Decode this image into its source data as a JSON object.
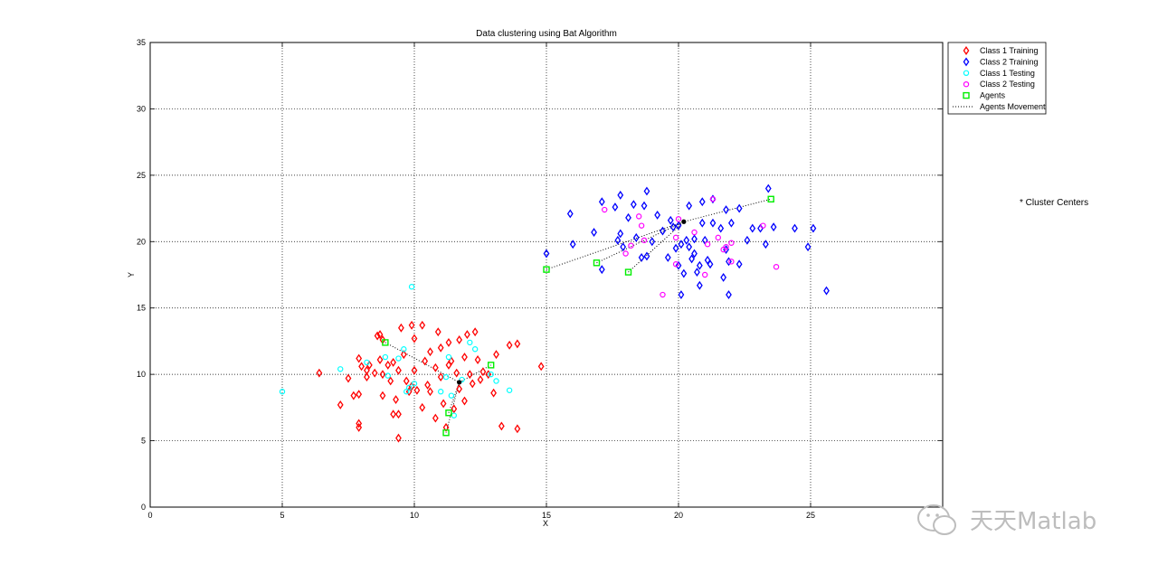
{
  "chart_data": {
    "type": "scatter",
    "title": "Data clustering using Bat Algorithm",
    "xlabel": "X",
    "ylabel": "Y",
    "xlim": [
      0,
      30
    ],
    "ylim": [
      0,
      35
    ],
    "xticks": [
      0,
      5,
      10,
      15,
      20,
      25
    ],
    "yticks": [
      0,
      5,
      10,
      15,
      20,
      25,
      30,
      35
    ],
    "grid": true,
    "legend_position": "outside-top-right",
    "series": [
      {
        "name": "Class 1 Training",
        "marker": "diamond",
        "color": "#ff0000",
        "points": [
          [
            6.4,
            10.1
          ],
          [
            7.2,
            7.7
          ],
          [
            7.5,
            9.7
          ],
          [
            7.7,
            8.4
          ],
          [
            7.9,
            8.5
          ],
          [
            7.9,
            11.2
          ],
          [
            7.9,
            6.3
          ],
          [
            7.9,
            6.0
          ],
          [
            8.0,
            10.6
          ],
          [
            8.2,
            9.8
          ],
          [
            8.2,
            10.3
          ],
          [
            8.3,
            10.7
          ],
          [
            8.5,
            10.1
          ],
          [
            8.6,
            12.9
          ],
          [
            8.7,
            11.1
          ],
          [
            8.7,
            13.0
          ],
          [
            8.8,
            8.4
          ],
          [
            8.8,
            10.0
          ],
          [
            8.8,
            12.6
          ],
          [
            9.0,
            10.7
          ],
          [
            9.1,
            9.5
          ],
          [
            9.2,
            7.0
          ],
          [
            9.2,
            10.9
          ],
          [
            9.3,
            8.1
          ],
          [
            9.4,
            5.2
          ],
          [
            9.4,
            7.0
          ],
          [
            9.4,
            10.3
          ],
          [
            9.5,
            13.5
          ],
          [
            9.6,
            11.5
          ],
          [
            9.7,
            9.5
          ],
          [
            9.8,
            8.7
          ],
          [
            9.9,
            13.7
          ],
          [
            9.9,
            9.1
          ],
          [
            10.0,
            12.7
          ],
          [
            10.0,
            10.3
          ],
          [
            10.1,
            8.8
          ],
          [
            10.3,
            13.7
          ],
          [
            10.3,
            7.5
          ],
          [
            10.4,
            11.0
          ],
          [
            10.5,
            9.2
          ],
          [
            10.6,
            11.7
          ],
          [
            10.6,
            8.7
          ],
          [
            10.8,
            10.5
          ],
          [
            10.8,
            6.7
          ],
          [
            10.9,
            13.2
          ],
          [
            11.0,
            9.8
          ],
          [
            11.0,
            12.0
          ],
          [
            11.1,
            7.8
          ],
          [
            11.2,
            6.0
          ],
          [
            11.3,
            10.7
          ],
          [
            11.3,
            12.4
          ],
          [
            11.4,
            11.0
          ],
          [
            11.5,
            7.4
          ],
          [
            11.6,
            10.1
          ],
          [
            11.7,
            8.9
          ],
          [
            11.7,
            12.6
          ],
          [
            11.9,
            8.0
          ],
          [
            11.9,
            11.3
          ],
          [
            12.0,
            13.0
          ],
          [
            12.1,
            10.0
          ],
          [
            12.2,
            9.3
          ],
          [
            12.3,
            13.2
          ],
          [
            12.4,
            11.1
          ],
          [
            12.5,
            9.6
          ],
          [
            12.6,
            10.2
          ],
          [
            12.8,
            10.0
          ],
          [
            13.0,
            8.6
          ],
          [
            13.1,
            11.5
          ],
          [
            13.3,
            6.1
          ],
          [
            13.6,
            12.2
          ],
          [
            13.9,
            12.3
          ],
          [
            13.9,
            5.9
          ],
          [
            14.8,
            10.6
          ]
        ]
      },
      {
        "name": "Class 2 Training",
        "marker": "diamond",
        "color": "#0000ff",
        "points": [
          [
            15.0,
            19.1
          ],
          [
            15.9,
            22.1
          ],
          [
            16.0,
            19.8
          ],
          [
            16.8,
            20.7
          ],
          [
            17.1,
            23.0
          ],
          [
            17.1,
            17.9
          ],
          [
            17.6,
            22.6
          ],
          [
            17.7,
            20.1
          ],
          [
            17.8,
            20.6
          ],
          [
            17.8,
            23.5
          ],
          [
            17.9,
            19.6
          ],
          [
            18.1,
            21.8
          ],
          [
            18.3,
            22.8
          ],
          [
            18.4,
            20.3
          ],
          [
            18.6,
            18.8
          ],
          [
            18.7,
            22.7
          ],
          [
            18.8,
            18.9
          ],
          [
            18.8,
            23.8
          ],
          [
            19.0,
            20.0
          ],
          [
            19.2,
            22.0
          ],
          [
            19.4,
            20.8
          ],
          [
            19.6,
            18.8
          ],
          [
            19.7,
            21.6
          ],
          [
            19.8,
            21.1
          ],
          [
            19.9,
            19.5
          ],
          [
            20.0,
            21.2
          ],
          [
            20.0,
            18.2
          ],
          [
            20.1,
            16.0
          ],
          [
            20.1,
            19.8
          ],
          [
            20.2,
            17.6
          ],
          [
            20.3,
            20.1
          ],
          [
            20.4,
            19.6
          ],
          [
            20.4,
            22.7
          ],
          [
            20.5,
            18.7
          ],
          [
            20.6,
            20.2
          ],
          [
            20.6,
            19.1
          ],
          [
            20.7,
            17.7
          ],
          [
            20.8,
            16.7
          ],
          [
            20.8,
            18.2
          ],
          [
            20.9,
            23.0
          ],
          [
            20.9,
            21.4
          ],
          [
            21.0,
            20.1
          ],
          [
            21.1,
            18.6
          ],
          [
            21.2,
            18.3
          ],
          [
            21.3,
            21.4
          ],
          [
            21.3,
            23.2
          ],
          [
            21.6,
            21.0
          ],
          [
            21.7,
            17.3
          ],
          [
            21.8,
            22.4
          ],
          [
            21.8,
            19.4
          ],
          [
            21.9,
            16.0
          ],
          [
            21.9,
            18.5
          ],
          [
            22.0,
            21.4
          ],
          [
            22.3,
            22.5
          ],
          [
            22.3,
            18.3
          ],
          [
            22.6,
            20.1
          ],
          [
            22.8,
            21.0
          ],
          [
            23.1,
            21.0
          ],
          [
            23.3,
            19.8
          ],
          [
            23.4,
            24.0
          ],
          [
            23.6,
            21.1
          ],
          [
            24.4,
            21.0
          ],
          [
            24.9,
            19.6
          ],
          [
            25.1,
            21.0
          ],
          [
            25.6,
            16.3
          ]
        ]
      },
      {
        "name": "Class 1 Testing",
        "marker": "circle",
        "color": "#00ffff",
        "points": [
          [
            5.0,
            8.7
          ],
          [
            7.2,
            10.4
          ],
          [
            8.2,
            10.9
          ],
          [
            8.9,
            11.3
          ],
          [
            9.0,
            9.9
          ],
          [
            9.4,
            11.2
          ],
          [
            9.6,
            11.9
          ],
          [
            9.7,
            8.7
          ],
          [
            9.8,
            9.0
          ],
          [
            9.9,
            16.6
          ],
          [
            10.0,
            9.3
          ],
          [
            11.0,
            8.7
          ],
          [
            11.2,
            9.8
          ],
          [
            11.3,
            11.3
          ],
          [
            11.4,
            8.4
          ],
          [
            11.5,
            6.9
          ],
          [
            11.8,
            9.6
          ],
          [
            12.1,
            12.4
          ],
          [
            12.3,
            11.9
          ],
          [
            12.9,
            10.0
          ],
          [
            13.1,
            9.5
          ],
          [
            13.6,
            8.8
          ]
        ]
      },
      {
        "name": "Class 2 Testing",
        "marker": "circle",
        "color": "#ff00ff",
        "points": [
          [
            17.2,
            22.4
          ],
          [
            18.0,
            19.1
          ],
          [
            18.2,
            19.7
          ],
          [
            18.5,
            21.9
          ],
          [
            18.6,
            21.2
          ],
          [
            18.7,
            20.1
          ],
          [
            19.4,
            16.0
          ],
          [
            19.9,
            18.3
          ],
          [
            19.9,
            20.3
          ],
          [
            20.0,
            21.7
          ],
          [
            20.6,
            20.7
          ],
          [
            21.0,
            17.5
          ],
          [
            21.1,
            19.8
          ],
          [
            21.3,
            23.2
          ],
          [
            21.5,
            20.3
          ],
          [
            21.7,
            19.4
          ],
          [
            21.8,
            19.6
          ],
          [
            22.0,
            19.9
          ],
          [
            22.0,
            18.5
          ],
          [
            23.2,
            21.2
          ],
          [
            23.7,
            18.1
          ]
        ]
      },
      {
        "name": "Agents",
        "marker": "square",
        "color": "#00ee00",
        "points": [
          [
            8.9,
            12.4
          ],
          [
            11.2,
            5.6
          ],
          [
            11.3,
            7.1
          ],
          [
            12.9,
            10.7
          ],
          [
            15.0,
            17.9
          ],
          [
            16.9,
            18.4
          ],
          [
            18.1,
            17.7
          ],
          [
            23.5,
            23.2
          ]
        ]
      },
      {
        "name": "Agents Movement",
        "marker": "dotted-line",
        "color": "#000000",
        "segments": [
          [
            [
              8.9,
              12.4
            ],
            [
              11.7,
              9.4
            ],
            [
              11.2,
              5.6
            ]
          ],
          [
            [
              11.3,
              7.1
            ],
            [
              11.7,
              9.4
            ],
            [
              12.9,
              10.7
            ]
          ],
          [
            [
              15.0,
              17.9
            ],
            [
              20.2,
              21.5
            ],
            [
              23.5,
              23.2
            ]
          ],
          [
            [
              16.9,
              18.4
            ],
            [
              20.2,
              21.5
            ]
          ],
          [
            [
              18.1,
              17.7
            ],
            [
              20.2,
              21.5
            ]
          ]
        ]
      }
    ],
    "cluster_centers": {
      "marker": "*",
      "color": "#000000",
      "points": [
        [
          11.7,
          9.4
        ],
        [
          20.2,
          21.5
        ]
      ]
    },
    "annotation": "* Cluster Centers"
  },
  "watermark": "天天Matlab"
}
